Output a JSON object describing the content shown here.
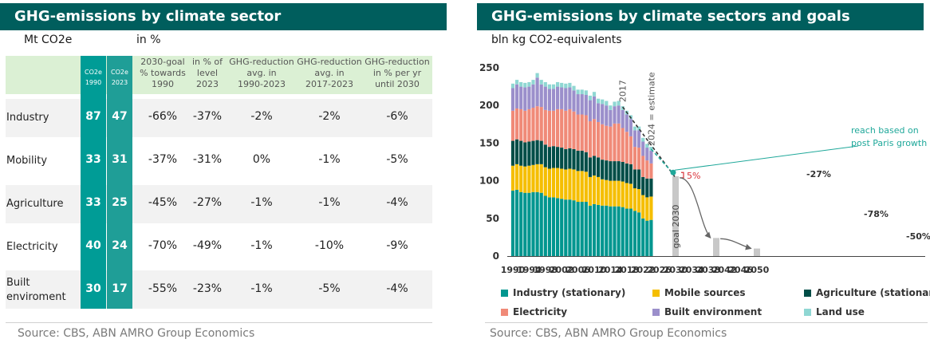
{
  "left": {
    "title": "GHG-emissions by climate sector",
    "unit_left": "Mt CO2e",
    "unit_right": "in %",
    "headers": {
      "co2e_1990": [
        "CO2e",
        "1990"
      ],
      "co2e_2023": [
        "CO2e",
        "2023"
      ],
      "goal": [
        "2030-goal",
        "% towards",
        "1990"
      ],
      "level": [
        "in % of",
        "level",
        "2023"
      ],
      "red_1990": [
        "GHG-reduction",
        "avg. in",
        "1990-2023"
      ],
      "red_2017": [
        "GHG-reduction",
        "avg. in",
        "2017-2023"
      ],
      "red_2030": [
        "GHG-reduction",
        "in % per yr",
        "until 2030"
      ]
    },
    "rows": [
      {
        "label": [
          "Industry"
        ],
        "v1990": "87",
        "v2023": "47",
        "goal": "-66%",
        "level": "-37%",
        "r1990": "-2%",
        "r2017": "-2%",
        "r2030": "-6%"
      },
      {
        "label": [
          "Mobility"
        ],
        "v1990": "33",
        "v2023": "31",
        "goal": "-37%",
        "level": "-31%",
        "r1990": "0%",
        "r2017": "-1%",
        "r2030": "-5%"
      },
      {
        "label": [
          "Agriculture"
        ],
        "v1990": "33",
        "v2023": "25",
        "goal": "-45%",
        "level": "-27%",
        "r1990": "-1%",
        "r2017": "-1%",
        "r2030": "-4%"
      },
      {
        "label": [
          "Electricity"
        ],
        "v1990": "40",
        "v2023": "24",
        "goal": "-70%",
        "level": "-49%",
        "r1990": "-1%",
        "r2017": "-10%",
        "r2030": "-9%"
      },
      {
        "label": [
          "Built",
          "enviroment"
        ],
        "v1990": "30",
        "v2023": "17",
        "goal": "-55%",
        "level": "-23%",
        "r1990": "-1%",
        "r2017": "-5%",
        "r2030": "-4%"
      }
    ],
    "source": "Source: CBS, ABN AMRO Group Economics"
  },
  "right": {
    "title": "GHG-emissions by climate sectors and goals",
    "unit": "bln kg CO2-equivalents",
    "source": "Source: CBS, ABN AMRO Group Economics",
    "annotations": {
      "y2017": "2017",
      "estimate": "2024 = estimate",
      "paris": [
        "reach based on",
        "post Paris growth"
      ],
      "pct5": "5%",
      "pct27": "-27%",
      "goal2030": "goal 2030",
      "pct78": "-78%",
      "pct50": "-50%"
    }
  },
  "chart_data": {
    "type": "bar",
    "stacked": true,
    "title": "GHG-emissions by climate sectors and goals",
    "ylabel": "bln kg CO2-equivalents",
    "ylim": [
      0,
      250
    ],
    "yticks": [
      0,
      50,
      100,
      150,
      200,
      250
    ],
    "xticks": [
      1990,
      1994,
      1998,
      2002,
      2006,
      2010,
      2014,
      2018,
      2022,
      2026,
      2030,
      2034,
      2038,
      2042,
      2046,
      2050
    ],
    "colors": {
      "industry": "#00968f",
      "mobile": "#f5be00",
      "agriculture": "#004d47",
      "electricity": "#f08a78",
      "built": "#9b8fcb",
      "landuse": "#8fd7d3",
      "goal": "#c8c8c8",
      "dash_black": "#333333",
      "dash_teal": "#1fa89a",
      "red": "#d9333a"
    },
    "legend": [
      {
        "key": "industry",
        "label": "Industry (stationary)"
      },
      {
        "key": "mobile",
        "label": "Mobile sources"
      },
      {
        "key": "agriculture",
        "label": "Agriculture (stationary)"
      },
      {
        "key": "electricity",
        "label": "Electricity"
      },
      {
        "key": "built",
        "label": "Built environment"
      },
      {
        "key": "landuse",
        "label": "Land use"
      }
    ],
    "years": [
      1990,
      1991,
      1992,
      1993,
      1994,
      1995,
      1996,
      1997,
      1998,
      1999,
      2000,
      2001,
      2002,
      2003,
      2004,
      2005,
      2006,
      2007,
      2008,
      2009,
      2010,
      2011,
      2012,
      2013,
      2014,
      2015,
      2016,
      2017,
      2018,
      2019,
      2020,
      2021,
      2022,
      2023,
      2024
    ],
    "series": [
      {
        "key": "industry",
        "name": "Industry (stationary)",
        "values": [
          87,
          88,
          85,
          84,
          84,
          85,
          85,
          84,
          80,
          78,
          78,
          77,
          76,
          75,
          75,
          74,
          72,
          72,
          72,
          67,
          69,
          68,
          67,
          67,
          66,
          66,
          66,
          65,
          63,
          63,
          60,
          58,
          50,
          47,
          48
        ]
      },
      {
        "key": "mobile",
        "name": "Mobile sources",
        "values": [
          33,
          34,
          35,
          35,
          36,
          36,
          37,
          38,
          38,
          38,
          39,
          40,
          40,
          40,
          41,
          41,
          41,
          41,
          40,
          38,
          38,
          37,
          35,
          34,
          34,
          34,
          34,
          34,
          34,
          33,
          30,
          31,
          31,
          31,
          31
        ]
      },
      {
        "key": "agriculture",
        "name": "Agriculture (stationary)",
        "values": [
          33,
          33,
          33,
          32,
          32,
          32,
          32,
          31,
          30,
          29,
          29,
          28,
          28,
          27,
          27,
          27,
          27,
          27,
          26,
          26,
          26,
          26,
          26,
          26,
          26,
          26,
          26,
          26,
          26,
          26,
          25,
          26,
          24,
          25,
          24
        ]
      },
      {
        "key": "electricity",
        "name": "Electricity",
        "values": [
          40,
          41,
          42,
          42,
          43,
          44,
          45,
          45,
          46,
          48,
          47,
          50,
          51,
          51,
          52,
          50,
          48,
          48,
          49,
          48,
          49,
          47,
          47,
          46,
          46,
          50,
          50,
          45,
          42,
          37,
          30,
          29,
          28,
          24,
          20
        ]
      },
      {
        "key": "built",
        "name": "Built environment",
        "values": [
          30,
          32,
          30,
          31,
          30,
          31,
          38,
          30,
          31,
          29,
          29,
          30,
          29,
          30,
          29,
          28,
          27,
          27,
          27,
          28,
          30,
          25,
          27,
          27,
          22,
          23,
          24,
          24,
          23,
          23,
          22,
          23,
          19,
          17,
          17
        ]
      },
      {
        "key": "landuse",
        "name": "Land use",
        "values": [
          6,
          6,
          6,
          6,
          6,
          6,
          6,
          6,
          6,
          6,
          6,
          6,
          6,
          6,
          6,
          6,
          6,
          6,
          6,
          6,
          6,
          6,
          6,
          6,
          6,
          6,
          6,
          5,
          5,
          5,
          5,
          5,
          5,
          5,
          5
        ]
      }
    ],
    "goals": [
      {
        "year": 2030,
        "value": 106
      },
      {
        "year": 2040,
        "value": 24
      },
      {
        "year": 2050,
        "value": 10
      }
    ],
    "trend_2017_2030": {
      "from": [
        2017,
        198
      ],
      "to": [
        2030,
        104
      ]
    },
    "paris_line": {
      "from": [
        2024,
        142
      ],
      "to": [
        2030,
        111
      ]
    }
  }
}
